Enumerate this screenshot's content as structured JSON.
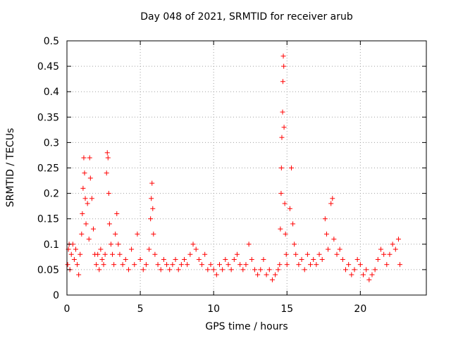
{
  "chart_data": {
    "type": "scatter",
    "title": "Day 048 of 2021, SRMTID for receiver arub",
    "xlabel": "GPS time / hours",
    "ylabel": "SRMTID / TECUs",
    "xlim": [
      0,
      24.5
    ],
    "ylim": [
      0,
      0.5
    ],
    "xticks": [
      0,
      5,
      10,
      15,
      20
    ],
    "yticks": [
      0,
      0.05,
      0.1,
      0.15,
      0.2,
      0.25,
      0.3,
      0.35,
      0.4,
      0.45,
      0.5
    ],
    "grid": true,
    "marker": "+",
    "series_color": "#ff0000",
    "series": [
      {
        "name": "SRMTID",
        "points": [
          [
            0.05,
            0.06
          ],
          [
            0.1,
            0.09
          ],
          [
            0.15,
            0.1
          ],
          [
            0.2,
            0.05
          ],
          [
            0.3,
            0.08
          ],
          [
            0.4,
            0.1
          ],
          [
            0.5,
            0.07
          ],
          [
            0.6,
            0.09
          ],
          [
            0.7,
            0.06
          ],
          [
            0.8,
            0.04
          ],
          [
            0.9,
            0.08
          ],
          [
            1.0,
            0.12
          ],
          [
            1.05,
            0.16
          ],
          [
            1.1,
            0.21
          ],
          [
            1.15,
            0.27
          ],
          [
            1.2,
            0.24
          ],
          [
            1.25,
            0.19
          ],
          [
            1.3,
            0.14
          ],
          [
            1.4,
            0.18
          ],
          [
            1.5,
            0.11
          ],
          [
            1.55,
            0.27
          ],
          [
            1.6,
            0.23
          ],
          [
            1.7,
            0.19
          ],
          [
            1.8,
            0.13
          ],
          [
            1.9,
            0.08
          ],
          [
            2.0,
            0.06
          ],
          [
            2.1,
            0.08
          ],
          [
            2.2,
            0.05
          ],
          [
            2.3,
            0.09
          ],
          [
            2.4,
            0.07
          ],
          [
            2.5,
            0.06
          ],
          [
            2.6,
            0.08
          ],
          [
            2.7,
            0.24
          ],
          [
            2.75,
            0.28
          ],
          [
            2.8,
            0.27
          ],
          [
            2.85,
            0.2
          ],
          [
            2.9,
            0.14
          ],
          [
            3.0,
            0.1
          ],
          [
            3.1,
            0.08
          ],
          [
            3.2,
            0.06
          ],
          [
            3.3,
            0.12
          ],
          [
            3.4,
            0.16
          ],
          [
            3.5,
            0.1
          ],
          [
            3.6,
            0.08
          ],
          [
            3.8,
            0.06
          ],
          [
            4.0,
            0.07
          ],
          [
            4.2,
            0.05
          ],
          [
            4.4,
            0.09
          ],
          [
            4.6,
            0.06
          ],
          [
            4.8,
            0.12
          ],
          [
            5.0,
            0.07
          ],
          [
            5.2,
            0.05
          ],
          [
            5.4,
            0.06
          ],
          [
            5.6,
            0.09
          ],
          [
            5.7,
            0.15
          ],
          [
            5.75,
            0.19
          ],
          [
            5.8,
            0.22
          ],
          [
            5.85,
            0.17
          ],
          [
            5.9,
            0.12
          ],
          [
            6.0,
            0.08
          ],
          [
            6.2,
            0.06
          ],
          [
            6.4,
            0.05
          ],
          [
            6.6,
            0.07
          ],
          [
            6.8,
            0.06
          ],
          [
            7.0,
            0.05
          ],
          [
            7.2,
            0.06
          ],
          [
            7.4,
            0.07
          ],
          [
            7.6,
            0.05
          ],
          [
            7.8,
            0.06
          ],
          [
            8.0,
            0.07
          ],
          [
            8.2,
            0.06
          ],
          [
            8.4,
            0.08
          ],
          [
            8.6,
            0.1
          ],
          [
            8.8,
            0.09
          ],
          [
            9.0,
            0.07
          ],
          [
            9.2,
            0.06
          ],
          [
            9.4,
            0.08
          ],
          [
            9.6,
            0.05
          ],
          [
            9.8,
            0.06
          ],
          [
            10.0,
            0.05
          ],
          [
            10.2,
            0.04
          ],
          [
            10.4,
            0.06
          ],
          [
            10.6,
            0.05
          ],
          [
            10.8,
            0.07
          ],
          [
            11.0,
            0.06
          ],
          [
            11.2,
            0.05
          ],
          [
            11.4,
            0.07
          ],
          [
            11.6,
            0.08
          ],
          [
            11.8,
            0.06
          ],
          [
            12.0,
            0.05
          ],
          [
            12.2,
            0.06
          ],
          [
            12.4,
            0.1
          ],
          [
            12.6,
            0.07
          ],
          [
            12.8,
            0.05
          ],
          [
            13.0,
            0.04
          ],
          [
            13.2,
            0.05
          ],
          [
            13.4,
            0.07
          ],
          [
            13.6,
            0.04
          ],
          [
            13.8,
            0.05
          ],
          [
            14.0,
            0.03
          ],
          [
            14.2,
            0.04
          ],
          [
            14.4,
            0.05
          ],
          [
            14.5,
            0.06
          ],
          [
            14.55,
            0.13
          ],
          [
            14.6,
            0.2
          ],
          [
            14.62,
            0.25
          ],
          [
            14.65,
            0.31
          ],
          [
            14.7,
            0.36
          ],
          [
            14.72,
            0.42
          ],
          [
            14.75,
            0.47
          ],
          [
            14.78,
            0.45
          ],
          [
            14.8,
            0.33
          ],
          [
            14.85,
            0.18
          ],
          [
            14.9,
            0.12
          ],
          [
            14.95,
            0.08
          ],
          [
            15.0,
            0.06
          ],
          [
            15.2,
            0.17
          ],
          [
            15.3,
            0.25
          ],
          [
            15.4,
            0.14
          ],
          [
            15.5,
            0.1
          ],
          [
            15.6,
            0.08
          ],
          [
            15.8,
            0.06
          ],
          [
            16.0,
            0.07
          ],
          [
            16.2,
            0.05
          ],
          [
            16.4,
            0.08
          ],
          [
            16.6,
            0.06
          ],
          [
            16.8,
            0.07
          ],
          [
            17.0,
            0.06
          ],
          [
            17.2,
            0.08
          ],
          [
            17.4,
            0.07
          ],
          [
            17.6,
            0.15
          ],
          [
            17.7,
            0.12
          ],
          [
            17.8,
            0.09
          ],
          [
            18.0,
            0.18
          ],
          [
            18.1,
            0.19
          ],
          [
            18.2,
            0.11
          ],
          [
            18.4,
            0.08
          ],
          [
            18.6,
            0.09
          ],
          [
            18.8,
            0.07
          ],
          [
            19.0,
            0.05
          ],
          [
            19.2,
            0.06
          ],
          [
            19.4,
            0.04
          ],
          [
            19.6,
            0.05
          ],
          [
            19.8,
            0.07
          ],
          [
            20.0,
            0.06
          ],
          [
            20.2,
            0.04
          ],
          [
            20.4,
            0.05
          ],
          [
            20.6,
            0.03
          ],
          [
            20.8,
            0.04
          ],
          [
            21.0,
            0.05
          ],
          [
            21.2,
            0.07
          ],
          [
            21.4,
            0.09
          ],
          [
            21.6,
            0.08
          ],
          [
            21.8,
            0.06
          ],
          [
            22.0,
            0.08
          ],
          [
            22.2,
            0.1
          ],
          [
            22.4,
            0.09
          ],
          [
            22.6,
            0.11
          ],
          [
            22.7,
            0.06
          ]
        ]
      }
    ]
  }
}
